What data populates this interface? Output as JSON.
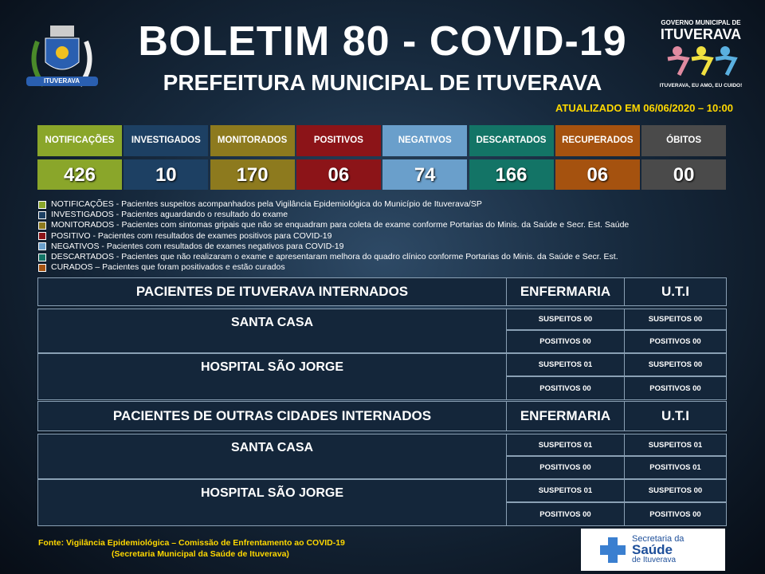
{
  "header": {
    "title": "BOLETIM 80 - COVID-19",
    "subtitle": "PREFEITURA MUNICIPAL DE ITUVERAVA",
    "updated": "ATUALIZADO EM 06/06/2020 – 10:00",
    "left_logo_text": "ITUVERAVA",
    "right_logo_top": "GOVERNO MUNICIPAL DE",
    "right_logo_name": "ITUVERAVA",
    "right_logo_slogan": "ITUVERAVA, EU AMO, EU CUIDO!"
  },
  "stats": [
    {
      "label": "NOTIFICAÇÕES",
      "value": "426",
      "color": "#8aa62a"
    },
    {
      "label": "INVESTIGADOS",
      "value": "10",
      "color": "#1d4063"
    },
    {
      "label": "MONITORADOS",
      "value": "170",
      "color": "#8d7a1e"
    },
    {
      "label": "POSITIVOS",
      "value": "06",
      "color": "#8c1418"
    },
    {
      "label": "NEGATIVOS",
      "value": "74",
      "color": "#6a9fcb"
    },
    {
      "label": "DESCARTADOS",
      "value": "166",
      "color": "#137466"
    },
    {
      "label": "RECUPERADOS",
      "value": "06",
      "color": "#a5520f"
    },
    {
      "label": "ÓBITOS",
      "value": "00",
      "color": "#4a4a4a"
    }
  ],
  "legend": [
    {
      "text": "NOTIFICAÇÕES  - Pacientes suspeitos acompanhados pela Vigilância Epidemiológica do Município de Ituverava/SP",
      "color": "#8aa62a"
    },
    {
      "text": "INVESTIGADOS  - Pacientes aguardando o resultado do exame",
      "color": "#1d4063"
    },
    {
      "text": "MONITORADOS  - Pacientes com sintomas gripais que não se enquadram para  coleta de exame conforme Portarias do Minis. da Saúde e Secr. Est. Saúde",
      "color": "#8d7a1e"
    },
    {
      "text": "POSITIVO  - Pacientes com resultados de exames positivos para COVID-19",
      "color": "#8c1418"
    },
    {
      "text": "NEGATIVOS  - Pacientes com resultados de exames negativos para COVID-19",
      "color": "#6a9fcb"
    },
    {
      "text": "DESCARTADOS  - Pacientes que não realizaram o exame e apresentaram melhora do quadro clínico  conforme Portarias do Minis. da Saúde e Secr. Est.",
      "color": "#137466"
    },
    {
      "text": "CURADOS   – Pacientes que foram positivados e estão curados",
      "color": "#a5520f"
    }
  ],
  "sections": [
    {
      "title": "PACIENTES DE ITUVERAVA INTERNADOS",
      "col1": "ENFERMARIA",
      "col2": "U.T.I",
      "hospitals": [
        {
          "name": "SANTA CASA",
          "rows": [
            [
              "SUSPEITOS 00",
              "SUSPEITOS 00"
            ],
            [
              "POSITIVOS 00",
              "POSITIVOS 00"
            ]
          ]
        },
        {
          "name": "HOSPITAL SÃO JORGE",
          "rows": [
            [
              "SUSPEITOS 01",
              "SUSPEITOS 00"
            ],
            [
              "POSITIVOS 00",
              "POSITIVOS 00"
            ]
          ]
        }
      ]
    },
    {
      "title": "PACIENTES DE OUTRAS CIDADES INTERNADOS",
      "col1": "ENFERMARIA",
      "col2": "U.T.I",
      "hospitals": [
        {
          "name": "SANTA CASA",
          "rows": [
            [
              "SUSPEITOS 01",
              "SUSPEITOS 01"
            ],
            [
              "POSITIVOS 00",
              "POSITIVOS 01"
            ]
          ]
        },
        {
          "name": "HOSPITAL SÃO JORGE",
          "rows": [
            [
              "SUSPEITOS 01",
              "SUSPEITOS 00"
            ],
            [
              "POSITIVOS 00",
              "POSITIVOS 00"
            ]
          ]
        }
      ]
    }
  ],
  "footer": {
    "source_line1": "Fonte: Vigilância Epidemiológica – Comissão de Enfrentamento ao COVID-19",
    "source_line2": "(Secretaria Municipal da Saúde de Ituverava)",
    "logo_line1": "Secretaria da",
    "logo_line2": "Saúde",
    "logo_line3": "de Ituverava"
  }
}
